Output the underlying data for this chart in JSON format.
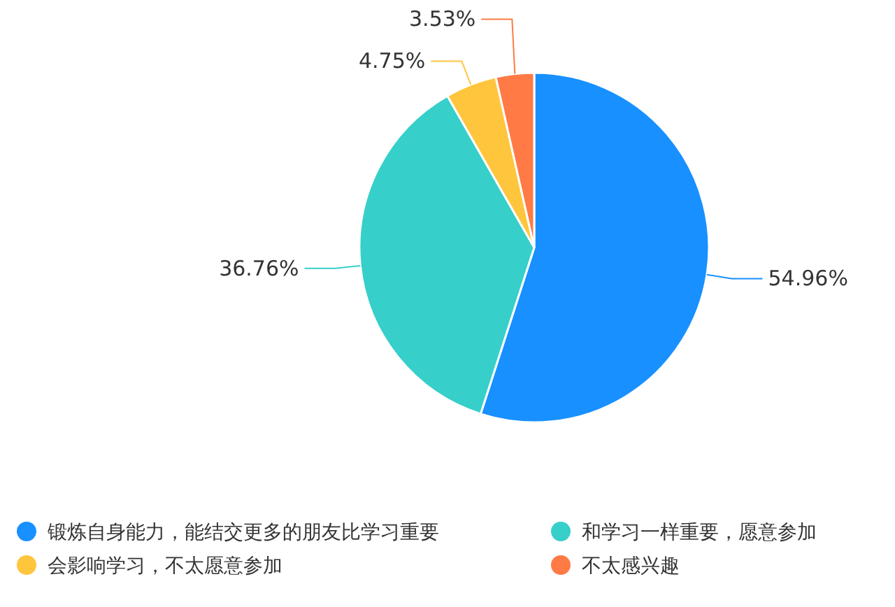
{
  "chart_data": {
    "type": "pie",
    "categories": [
      "锻炼自身能力，能结交更多的朋友比学习重要",
      "和学习一样重要，愿意参加",
      "会影响学习，不太愿意参加",
      "不太感兴趣"
    ],
    "values": [
      54.96,
      36.76,
      4.75,
      3.53
    ],
    "colors": [
      "#1890ff",
      "#36cfc9",
      "#ffc53d",
      "#ff7a45"
    ],
    "value_labels": [
      "54.96%",
      "36.76%",
      "4.75%",
      "3.53%"
    ],
    "legend": "bottom"
  }
}
